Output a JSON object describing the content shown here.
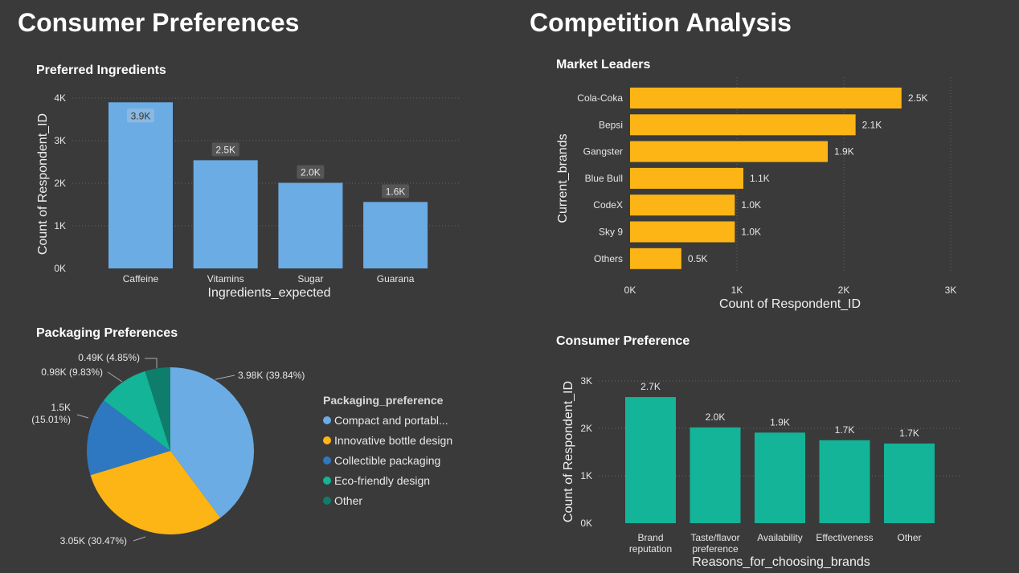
{
  "sections": {
    "left_title": "Consumer Preferences",
    "right_title": "Competition Analysis"
  },
  "chart_data": [
    {
      "id": "ingredients",
      "type": "bar",
      "title": "Preferred Ingredients",
      "xlabel": "Ingredients_expected",
      "ylabel": "Count of Respondent_ID",
      "categories": [
        "Caffeine",
        "Vitamins",
        "Sugar",
        "Guarana"
      ],
      "values": [
        3900,
        2540,
        2010,
        1560
      ],
      "data_labels": [
        "3.9K",
        "2.5K",
        "2.0K",
        "1.6K"
      ],
      "ylim": [
        0,
        4000
      ],
      "yticks": [
        0,
        1000,
        2000,
        3000,
        4000
      ],
      "ytick_labels": [
        "0K",
        "1K",
        "2K",
        "3K",
        "4K"
      ],
      "grid": true,
      "color": "#6cace4"
    },
    {
      "id": "packaging",
      "type": "pie",
      "title": "Packaging Preferences",
      "legend_title": "Packaging_preference",
      "legend_position": "right",
      "categories": [
        "Compact and portabl...",
        "Innovative bottle design",
        "Collectible packaging",
        "Eco-friendly design",
        "Other"
      ],
      "values": [
        3980,
        3050,
        1500,
        980,
        490
      ],
      "percents": [
        39.84,
        30.47,
        15.01,
        9.83,
        4.85
      ],
      "data_labels": [
        "3.98K (39.84%)",
        "3.05K (30.47%)",
        "1.5K\n(15.01%)",
        "0.98K (9.83%)",
        "0.49K (4.85%)"
      ],
      "colors": [
        "#6cace4",
        "#fdb515",
        "#2d78c0",
        "#13b497",
        "#0f7d6c"
      ]
    },
    {
      "id": "market_leaders",
      "type": "bar",
      "orientation": "horizontal",
      "title": "Market Leaders",
      "xlabel": "Count of Respondent_ID",
      "ylabel": "Current_brands",
      "categories": [
        "Cola-Coka",
        "Bepsi",
        "Gangster",
        "Blue Bull",
        "CodeX",
        "Sky 9",
        "Others"
      ],
      "values": [
        2540,
        2110,
        1850,
        1060,
        980,
        980,
        480
      ],
      "data_labels": [
        "2.5K",
        "2.1K",
        "1.9K",
        "1.1K",
        "1.0K",
        "1.0K",
        "0.5K"
      ],
      "xlim": [
        0,
        3000
      ],
      "xticks": [
        0,
        1000,
        2000,
        3000
      ],
      "xtick_labels": [
        "0K",
        "1K",
        "2K",
        "3K"
      ],
      "grid": true,
      "color": "#fdb515"
    },
    {
      "id": "consumer_preference",
      "type": "bar",
      "title": "Consumer Preference",
      "xlabel": "Reasons_for_choosing_brands",
      "ylabel": "Count of Respondent_ID",
      "categories": [
        "Brand\nreputation",
        "Taste/flavor\npreference",
        "Availability",
        "Effectiveness",
        "Other"
      ],
      "values": [
        2660,
        2020,
        1910,
        1750,
        1680
      ],
      "data_labels": [
        "2.7K",
        "2.0K",
        "1.9K",
        "1.7K",
        "1.7K"
      ],
      "ylim": [
        0,
        3000
      ],
      "yticks": [
        0,
        1000,
        2000,
        3000
      ],
      "ytick_labels": [
        "0K",
        "1K",
        "2K",
        "3K"
      ],
      "grid": true,
      "color": "#13b497"
    }
  ]
}
